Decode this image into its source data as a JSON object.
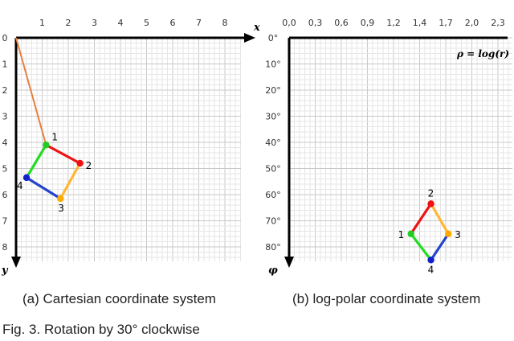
{
  "figure_caption": "Fig. 3. Rotation by 30° clockwise",
  "cartesian": {
    "caption": "(a) Cartesian coordinate system",
    "x_axis_var": "x",
    "y_axis_var": "y",
    "x_ticks": [
      "0",
      "1",
      "2",
      "3",
      "4",
      "5",
      "6",
      "7",
      "8"
    ],
    "y_ticks": [
      "0",
      "1",
      "2",
      "3",
      "4",
      "5",
      "6",
      "7",
      "8"
    ],
    "points": [
      {
        "label": "1",
        "x": 1.15,
        "y": 4.1,
        "color": "#22cc22"
      },
      {
        "label": "2",
        "x": 2.45,
        "y": 4.8,
        "color": "#ee1111"
      },
      {
        "label": "3",
        "x": 1.7,
        "y": 6.15,
        "color": "#ffaa00"
      },
      {
        "label": "4",
        "x": 0.4,
        "y": 5.35,
        "color": "#1122cc"
      }
    ],
    "edges": [
      {
        "from": 0,
        "to": 1,
        "color": "#ee1111"
      },
      {
        "from": 1,
        "to": 2,
        "color": "#ffb733"
      },
      {
        "from": 2,
        "to": 3,
        "color": "#2244cc"
      },
      {
        "from": 3,
        "to": 0,
        "color": "#22dd22"
      }
    ],
    "ray_color": "#e58040"
  },
  "logpolar": {
    "caption": "(b) log-polar coordinate system",
    "rho_label": "ρ = log(r)",
    "phi_axis_var": "φ",
    "rho_ticks": [
      "0,0",
      "0,3",
      "0,6",
      "0,9",
      "1,2",
      "1,4",
      "1,7",
      "2,0",
      "2,3"
    ],
    "phi_ticks": [
      "0°",
      "10°",
      "20°",
      "30°",
      "40°",
      "50°",
      "60°",
      "70°",
      "80°"
    ],
    "points": [
      {
        "label": "1",
        "rho": 1.4,
        "phi": 75,
        "color": "#22cc22"
      },
      {
        "label": "2",
        "rho": 1.63,
        "phi": 63.5,
        "color": "#ee1111"
      },
      {
        "label": "3",
        "rho": 1.83,
        "phi": 75,
        "color": "#ffaa00"
      },
      {
        "label": "4",
        "rho": 1.63,
        "phi": 85,
        "color": "#1122cc"
      }
    ],
    "edges": [
      {
        "from": 0,
        "to": 1,
        "color": "#ee1111"
      },
      {
        "from": 1,
        "to": 2,
        "color": "#ffb733"
      },
      {
        "from": 2,
        "to": 3,
        "color": "#2244cc"
      },
      {
        "from": 3,
        "to": 0,
        "color": "#22dd22"
      }
    ]
  }
}
